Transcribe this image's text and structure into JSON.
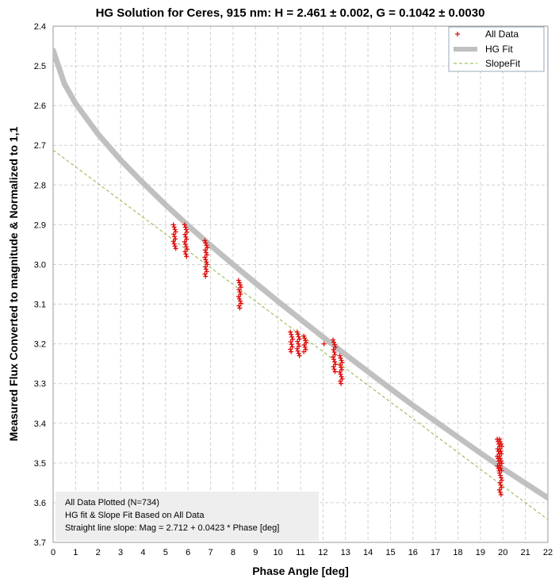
{
  "chart_data": {
    "type": "scatter",
    "title": "HG Solution for Ceres, 915 nm: H = 2.461 ± 0.002, G = 0.1042 ± 0.0030",
    "xlabel": "Phase Angle [deg]",
    "ylabel": "Measured Flux Converted to magnitude & Normalized to 1,1",
    "xlim": [
      0,
      22
    ],
    "ylim": [
      2.4,
      3.7
    ],
    "y_inverted": true,
    "x_ticks": [
      "0",
      "1",
      "2",
      "3",
      "4",
      "5",
      "6",
      "7",
      "8",
      "9",
      "10",
      "11",
      "12",
      "13",
      "14",
      "15",
      "16",
      "17",
      "18",
      "19",
      "20",
      "21",
      "22"
    ],
    "y_ticks": [
      "2.4",
      "2.5",
      "2.6",
      "2.7",
      "2.8",
      "2.9",
      "3.0",
      "3.1",
      "3.2",
      "3.3",
      "3.4",
      "3.5",
      "3.6",
      "3.7"
    ],
    "grid": true,
    "legend_position": "top-right",
    "series": [
      {
        "name": "All Data",
        "kind": "points",
        "color": "#e01010",
        "marker": "plus",
        "clusters": [
          {
            "x": 5.4,
            "y_min": 2.9,
            "y_max": 2.96
          },
          {
            "x": 5.9,
            "y_min": 2.9,
            "y_max": 2.98
          },
          {
            "x": 6.8,
            "y_min": 2.94,
            "y_max": 3.03
          },
          {
            "x": 8.3,
            "y_min": 3.04,
            "y_max": 3.11
          },
          {
            "x": 10.6,
            "y_min": 3.17,
            "y_max": 3.22
          },
          {
            "x": 10.9,
            "y_min": 3.17,
            "y_max": 3.23
          },
          {
            "x": 11.2,
            "y_min": 3.18,
            "y_max": 3.22
          },
          {
            "x": 12.1,
            "y_min": 3.2,
            "y_max": 3.2
          },
          {
            "x": 12.5,
            "y_min": 3.19,
            "y_max": 3.27
          },
          {
            "x": 12.8,
            "y_min": 3.23,
            "y_max": 3.3
          },
          {
            "x": 19.8,
            "y_min": 3.44,
            "y_max": 3.52
          },
          {
            "x": 19.9,
            "y_min": 3.44,
            "y_max": 3.58
          }
        ]
      },
      {
        "name": "HG Fit",
        "kind": "line",
        "color": "#c0c0c0",
        "x": [
          0,
          0.5,
          1,
          2,
          3,
          4,
          5,
          6,
          7,
          8,
          9,
          10,
          11,
          12,
          13,
          14,
          15,
          16,
          17,
          18,
          19,
          20,
          21,
          22
        ],
        "y": [
          2.461,
          2.545,
          2.595,
          2.672,
          2.737,
          2.795,
          2.85,
          2.902,
          2.952,
          3.0,
          3.047,
          3.093,
          3.138,
          3.183,
          3.227,
          3.27,
          3.313,
          3.355,
          3.395,
          3.435,
          3.475,
          3.514,
          3.551,
          3.588
        ]
      },
      {
        "name": "SlopeFit",
        "kind": "line",
        "color": "#9fc060",
        "dashed": true,
        "intercept": 2.712,
        "slope": 0.0423
      }
    ],
    "annotation": [
      "All Data Plotted (N=734)",
      "HG fit & Slope Fit Based on All Data",
      "Straight line slope:  Mag = 2.712 + 0.0423 * Phase [deg]"
    ]
  }
}
